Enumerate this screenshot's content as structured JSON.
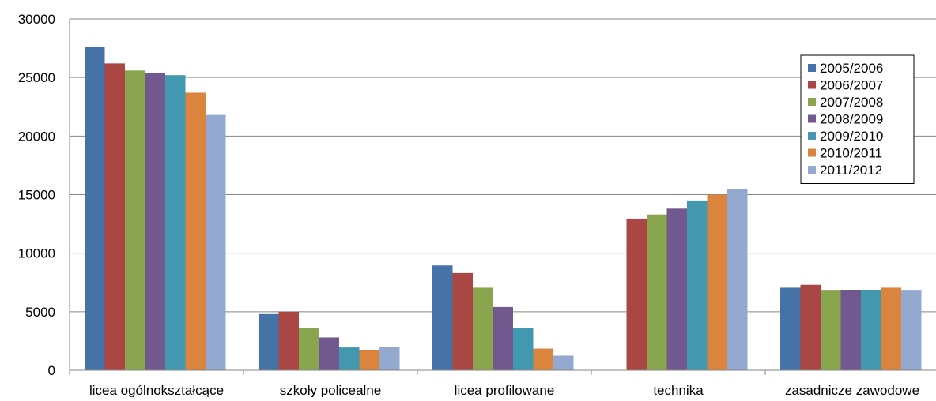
{
  "chart_data": {
    "type": "bar",
    "title": "",
    "xlabel": "",
    "ylabel": "",
    "ylim": [
      0,
      30000
    ],
    "yticks": [
      0,
      5000,
      10000,
      15000,
      20000,
      25000,
      30000
    ],
    "grid": true,
    "legend_position": "top-right",
    "categories": [
      "licea ogólnokształcące",
      "szkoły policealne",
      "licea profilowane",
      "technika",
      "zasadnicze zawodowe"
    ],
    "series": [
      {
        "name": "2005/2006",
        "color": "#4572A7",
        "values": [
          27600,
          4800,
          8950,
          null,
          7050
        ]
      },
      {
        "name": "2006/2007",
        "color": "#AA4643",
        "values": [
          26200,
          5000,
          8300,
          12950,
          7300
        ]
      },
      {
        "name": "2007/2008",
        "color": "#89A54E",
        "values": [
          25600,
          3600,
          7050,
          13300,
          6800
        ]
      },
      {
        "name": "2008/2009",
        "color": "#71588F",
        "values": [
          25350,
          2800,
          5400,
          13800,
          6850
        ]
      },
      {
        "name": "2009/2010",
        "color": "#4198AF",
        "values": [
          25200,
          1950,
          3600,
          14500,
          6850
        ]
      },
      {
        "name": "2010/2011",
        "color": "#DB843D",
        "values": [
          23700,
          1700,
          1850,
          15000,
          7050
        ]
      },
      {
        "name": "2011/2012",
        "color": "#93A9CF",
        "values": [
          21800,
          2000,
          1250,
          15450,
          6800
        ]
      }
    ]
  }
}
